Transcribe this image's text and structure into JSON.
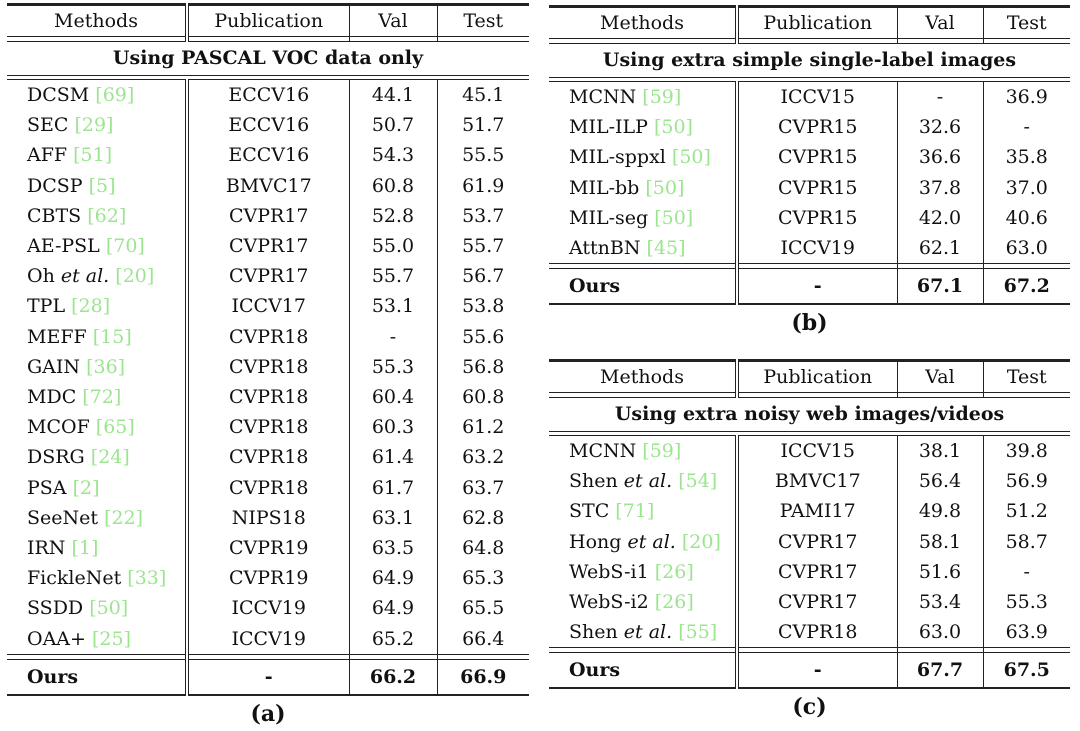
{
  "tables": {
    "a": {
      "headers": [
        "Methods",
        "Publication",
        "Val",
        "Test"
      ],
      "section": "Using PASCAL VOC data only",
      "rows": [
        {
          "method": "DCSM ",
          "cite": "[69]",
          "pub": "ECCV16",
          "val": "44.1",
          "test": "45.1"
        },
        {
          "method": "SEC ",
          "cite": "[29]",
          "pub": "ECCV16",
          "val": "50.7",
          "test": "51.7"
        },
        {
          "method": "AFF ",
          "cite": "[51]",
          "pub": "ECCV16",
          "val": "54.3",
          "test": "55.5"
        },
        {
          "method": "DCSP ",
          "cite": "[5]",
          "pub": "BMVC17",
          "val": "60.8",
          "test": "61.9"
        },
        {
          "method": "CBTS ",
          "cite": "[62]",
          "pub": "CVPR17",
          "val": "52.8",
          "test": "53.7"
        },
        {
          "method": "AE-PSL ",
          "cite": "[70]",
          "pub": "CVPR17",
          "val": "55.0",
          "test": "55.7"
        },
        {
          "method": "Oh ",
          "em": "et al.",
          "after": " ",
          "cite": "[20]",
          "pub": "CVPR17",
          "val": "55.7",
          "test": "56.7"
        },
        {
          "method": "TPL ",
          "cite": "[28]",
          "pub": "ICCV17",
          "val": "53.1",
          "test": "53.8"
        },
        {
          "method": "MEFF ",
          "cite": "[15]",
          "pub": "CVPR18",
          "val": "-",
          "test": "55.6"
        },
        {
          "method": "GAIN ",
          "cite": "[36]",
          "pub": "CVPR18",
          "val": "55.3",
          "test": "56.8"
        },
        {
          "method": "MDC ",
          "cite": "[72]",
          "pub": "CVPR18",
          "val": "60.4",
          "test": "60.8"
        },
        {
          "method": "MCOF ",
          "cite": "[65]",
          "pub": "CVPR18",
          "val": "60.3",
          "test": "61.2"
        },
        {
          "method": "DSRG ",
          "cite": "[24]",
          "pub": "CVPR18",
          "val": "61.4",
          "test": "63.2"
        },
        {
          "method": "PSA ",
          "cite": "[2]",
          "pub": "CVPR18",
          "val": "61.7",
          "test": "63.7"
        },
        {
          "method": "SeeNet ",
          "cite": "[22]",
          "pub": "NIPS18",
          "val": "63.1",
          "test": "62.8"
        },
        {
          "method": "IRN ",
          "cite": "[1]",
          "pub": "CVPR19",
          "val": "63.5",
          "test": "64.8"
        },
        {
          "method": "FickleNet ",
          "cite": "[33]",
          "pub": "CVPR19",
          "val": "64.9",
          "test": "65.3"
        },
        {
          "method": "SSDD ",
          "cite": "[50]",
          "pub": "ICCV19",
          "val": "64.9",
          "test": "65.5"
        },
        {
          "method": "OAA+ ",
          "cite": "[25]",
          "pub": "ICCV19",
          "val": "65.2",
          "test": "66.4"
        }
      ],
      "ours": {
        "method": "Ours",
        "pub": "-",
        "val": "66.2",
        "test": "66.9"
      },
      "label": "(a)"
    },
    "b": {
      "headers": [
        "Methods",
        "Publication",
        "Val",
        "Test"
      ],
      "section": "Using extra simple single-label images",
      "rows": [
        {
          "method": "MCNN ",
          "cite": "[59]",
          "pub": "ICCV15",
          "val": "-",
          "test": "36.9"
        },
        {
          "method": "MIL-ILP ",
          "cite": "[50]",
          "pub": "CVPR15",
          "val": "32.6",
          "test": "-"
        },
        {
          "method": "MIL-sppxl ",
          "cite": "[50]",
          "pub": "CVPR15",
          "val": "36.6",
          "test": "35.8"
        },
        {
          "method": "MIL-bb ",
          "cite": "[50]",
          "pub": "CVPR15",
          "val": "37.8",
          "test": "37.0"
        },
        {
          "method": "MIL-seg ",
          "cite": "[50]",
          "pub": "CVPR15",
          "val": "42.0",
          "test": "40.6"
        },
        {
          "method": "AttnBN ",
          "cite": "[45]",
          "pub": "ICCV19",
          "val": "62.1",
          "test": "63.0"
        }
      ],
      "ours": {
        "method": "Ours",
        "pub": "-",
        "val": "67.1",
        "test": "67.2"
      },
      "label": "(b)"
    },
    "c": {
      "headers": [
        "Methods",
        "Publication",
        "Val",
        "Test"
      ],
      "section": "Using extra noisy web images/videos",
      "rows": [
        {
          "method": "MCNN ",
          "cite": "[59]",
          "pub": "ICCV15",
          "val": "38.1",
          "test": "39.8"
        },
        {
          "method": "Shen ",
          "em": "et al.",
          "after": " ",
          "cite": "[54]",
          "pub": "BMVC17",
          "val": "56.4",
          "test": "56.9"
        },
        {
          "method": "STC ",
          "cite": "[71]",
          "pub": "PAMI17",
          "val": "49.8",
          "test": "51.2"
        },
        {
          "method": "Hong ",
          "em": "et al.",
          "after": " ",
          "cite": "[20]",
          "pub": "CVPR17",
          "val": "58.1",
          "test": "58.7"
        },
        {
          "method": "WebS-i1 ",
          "cite": "[26]",
          "pub": "CVPR17",
          "val": "51.6",
          "test": "-"
        },
        {
          "method": "WebS-i2 ",
          "cite": "[26]",
          "pub": "CVPR17",
          "val": "53.4",
          "test": "55.3"
        },
        {
          "method": "Shen ",
          "em": "et al.",
          "after": " ",
          "cite": "[55]",
          "pub": "CVPR18",
          "val": "63.0",
          "test": "63.9"
        }
      ],
      "ours": {
        "method": "Ours",
        "pub": "-",
        "val": "67.7",
        "test": "67.5"
      },
      "label": "(c)"
    }
  },
  "colors": {
    "citation": "#9be58f",
    "rule": "#222222"
  }
}
